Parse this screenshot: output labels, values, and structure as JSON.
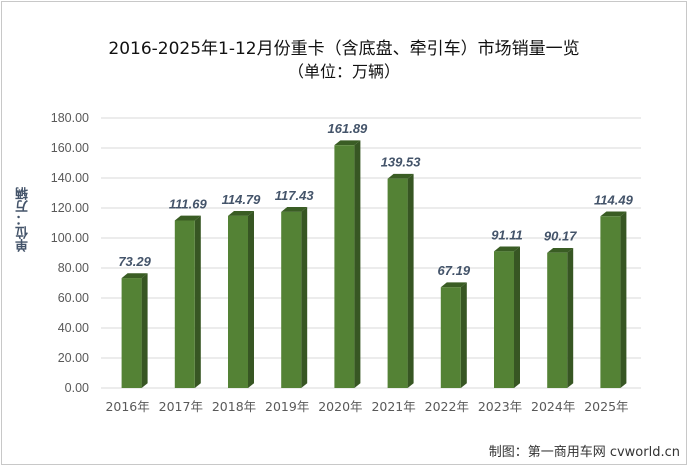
{
  "chart_data": {
    "type": "bar",
    "title": "2016-2025年1-12月份重卡（含底盘、牵引车）市场销量一览",
    "subtitle": "（单位：万辆）",
    "ylabel": "单位：万辆",
    "xlabel": "",
    "categories": [
      "2016年",
      "2017年",
      "2018年",
      "2019年",
      "2020年",
      "2021年",
      "2022年",
      "2023年",
      "2024年",
      "2025年"
    ],
    "values": [
      73.29,
      111.69,
      114.79,
      117.43,
      161.89,
      139.53,
      67.19,
      91.11,
      90.17,
      114.49
    ],
    "value_labels": [
      "73.29",
      "111.69",
      "114.79",
      "117.43",
      "161.89",
      "139.53",
      "67.19",
      "91.11",
      "90.17",
      "114.49"
    ],
    "ylim": [
      0,
      180
    ],
    "yticks": [
      "0.00",
      "20.00",
      "40.00",
      "60.00",
      "80.00",
      "100.00",
      "120.00",
      "140.00",
      "160.00",
      "180.00"
    ],
    "grid": true,
    "bar_color": "#548235",
    "bar_side_color": "#375623",
    "bar_top_color": "#3a5d24"
  },
  "footer": "制图：第一商用车网 cvworld.cn"
}
